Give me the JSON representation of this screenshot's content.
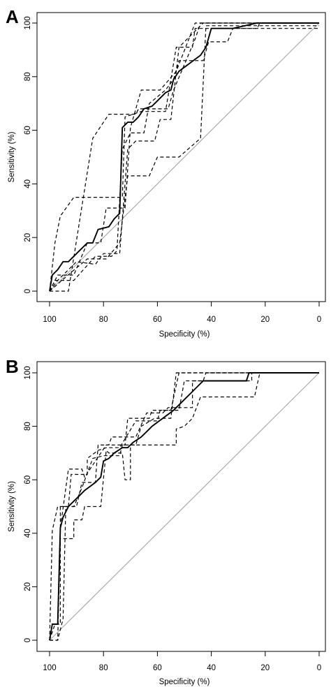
{
  "chart_data": [
    {
      "type": "line",
      "panel_label": "A",
      "xlabel": "Specificity (%)",
      "ylabel": "Sensitivity (%)",
      "xlim": [
        100,
        0
      ],
      "ylim": [
        0,
        100
      ],
      "x_ticks": [
        100,
        80,
        60,
        40,
        20,
        0
      ],
      "y_ticks": [
        0,
        20,
        40,
        60,
        80,
        100
      ],
      "grid": false,
      "reference_line": [
        [
          100,
          0
        ],
        [
          0,
          100
        ]
      ],
      "series": [
        {
          "style": "solid",
          "points": [
            [
              100,
              0
            ],
            [
              99,
              6
            ],
            [
              97,
              8
            ],
            [
              95,
              11
            ],
            [
              93,
              11
            ],
            [
              91,
              13
            ],
            [
              88,
              16
            ],
            [
              86,
              18
            ],
            [
              84,
              18
            ],
            [
              82,
              23
            ],
            [
              78,
              24
            ],
            [
              76,
              27
            ],
            [
              74,
              29
            ],
            [
              73,
              61
            ],
            [
              71,
              63
            ],
            [
              69,
              63
            ],
            [
              67,
              65
            ],
            [
              65,
              68
            ],
            [
              62,
              69
            ],
            [
              60,
              71
            ],
            [
              57,
              74
            ],
            [
              55,
              75
            ],
            [
              54,
              79
            ],
            [
              52,
              82
            ],
            [
              48,
              85
            ],
            [
              44,
              88
            ],
            [
              42,
              91
            ],
            [
              40,
              98
            ],
            [
              32,
              98
            ],
            [
              23,
              100
            ],
            [
              0,
              100
            ]
          ]
        },
        {
          "style": "dashed",
          "points": [
            [
              100,
              0
            ],
            [
              98,
              18
            ],
            [
              96,
              28
            ],
            [
              91,
              35
            ],
            [
              78,
              35
            ],
            [
              73,
              35
            ],
            [
              72,
              65
            ],
            [
              66,
              67
            ],
            [
              57,
              67
            ],
            [
              53,
              91
            ],
            [
              47,
              91
            ],
            [
              46,
              98
            ],
            [
              23,
              98
            ],
            [
              22,
              100
            ],
            [
              0,
              100
            ]
          ]
        },
        {
          "style": "dashed",
          "points": [
            [
              100,
              0
            ],
            [
              93,
              0
            ],
            [
              84,
              57
            ],
            [
              78,
              66
            ],
            [
              68,
              66
            ],
            [
              67,
              68
            ],
            [
              56,
              68
            ],
            [
              54,
              75
            ],
            [
              46,
              94
            ],
            [
              44,
              100
            ],
            [
              0,
              100
            ]
          ]
        },
        {
          "style": "dashed",
          "points": [
            [
              100,
              0
            ],
            [
              97,
              6
            ],
            [
              91,
              6
            ],
            [
              86,
              18
            ],
            [
              81,
              18
            ],
            [
              79,
              31
            ],
            [
              72,
              31
            ],
            [
              70,
              61
            ],
            [
              66,
              75
            ],
            [
              59,
              75
            ],
            [
              53,
              82
            ],
            [
              46,
              100
            ],
            [
              0,
              100
            ]
          ]
        },
        {
          "style": "dashed",
          "points": [
            [
              100,
              0
            ],
            [
              97,
              4
            ],
            [
              90,
              11
            ],
            [
              83,
              10
            ],
            [
              80,
              14
            ],
            [
              74,
              14
            ],
            [
              73,
              27
            ],
            [
              71,
              53
            ],
            [
              68,
              56
            ],
            [
              61,
              56
            ],
            [
              59,
              64
            ],
            [
              55,
              64
            ],
            [
              52,
              91
            ],
            [
              43,
              100
            ],
            [
              0,
              100
            ]
          ]
        },
        {
          "style": "dashed",
          "points": [
            [
              100,
              0
            ],
            [
              98,
              4
            ],
            [
              91,
              4
            ],
            [
              83,
              13
            ],
            [
              77,
              13
            ],
            [
              75,
              15
            ],
            [
              73,
              53
            ],
            [
              70,
              59
            ],
            [
              65,
              59
            ],
            [
              63,
              70
            ],
            [
              57,
              75
            ],
            [
              54,
              79
            ],
            [
              52,
              86
            ],
            [
              43,
              86
            ],
            [
              41,
              93
            ],
            [
              34,
              93
            ],
            [
              32,
              98
            ],
            [
              0,
              98
            ]
          ]
        },
        {
          "style": "dashed",
          "points": [
            [
              100,
              0
            ],
            [
              92,
              7
            ],
            [
              86,
              12
            ],
            [
              79,
              12
            ],
            [
              74,
              18
            ],
            [
              71,
              43
            ],
            [
              63,
              43
            ],
            [
              60,
              50
            ],
            [
              52,
              50
            ],
            [
              44,
              57
            ],
            [
              42,
              99
            ],
            [
              0,
              99
            ]
          ]
        }
      ]
    },
    {
      "type": "line",
      "panel_label": "B",
      "xlabel": "Specificity (%)",
      "ylabel": "Sensitivity (%)",
      "xlim": [
        100,
        0
      ],
      "ylim": [
        0,
        100
      ],
      "x_ticks": [
        100,
        80,
        60,
        40,
        20,
        0
      ],
      "y_ticks": [
        0,
        20,
        40,
        60,
        80,
        100
      ],
      "grid": false,
      "reference_line": [
        [
          100,
          0
        ],
        [
          0,
          100
        ]
      ],
      "series": [
        {
          "style": "solid",
          "points": [
            [
              100,
              0
            ],
            [
              99,
              6
            ],
            [
              97,
              6
            ],
            [
              96,
              42
            ],
            [
              95,
              46
            ],
            [
              93,
              50
            ],
            [
              91,
              52
            ],
            [
              89,
              54
            ],
            [
              87,
              56
            ],
            [
              83,
              59
            ],
            [
              81,
              61
            ],
            [
              80,
              67
            ],
            [
              78,
              68
            ],
            [
              76,
              70
            ],
            [
              73,
              72
            ],
            [
              71,
              72
            ],
            [
              69,
              74
            ],
            [
              66,
              76
            ],
            [
              64,
              78
            ],
            [
              62,
              80
            ],
            [
              58,
              83
            ],
            [
              54,
              86
            ],
            [
              50,
              90
            ],
            [
              46,
              94
            ],
            [
              43,
              97
            ],
            [
              27,
              97
            ],
            [
              26,
              100
            ],
            [
              0,
              100
            ]
          ]
        },
        {
          "style": "dashed",
          "points": [
            [
              100,
              0
            ],
            [
              98,
              6
            ],
            [
              96,
              6
            ],
            [
              96,
              50
            ],
            [
              93,
              50
            ],
            [
              92,
              62
            ],
            [
              86,
              62
            ],
            [
              86,
              68
            ],
            [
              82,
              71
            ],
            [
              79,
              72
            ],
            [
              74,
              72
            ],
            [
              68,
              82
            ],
            [
              60,
              82
            ],
            [
              59,
              86
            ],
            [
              52,
              86
            ],
            [
              50,
              97
            ],
            [
              43,
              97
            ],
            [
              42,
              100
            ],
            [
              0,
              100
            ]
          ]
        },
        {
          "style": "dashed",
          "points": [
            [
              100,
              0
            ],
            [
              99,
              41
            ],
            [
              97,
              50
            ],
            [
              91,
              50
            ],
            [
              88,
              57
            ],
            [
              84,
              68
            ],
            [
              80,
              69
            ],
            [
              74,
              69
            ],
            [
              73,
              73
            ],
            [
              68,
              73
            ],
            [
              66,
              80
            ],
            [
              61,
              83
            ],
            [
              55,
              83
            ],
            [
              53,
              100
            ],
            [
              0,
              100
            ]
          ]
        },
        {
          "style": "dashed",
          "points": [
            [
              100,
              0
            ],
            [
              99,
              6
            ],
            [
              97,
              6
            ],
            [
              96,
              42
            ],
            [
              93,
              64
            ],
            [
              88,
              64
            ],
            [
              87,
              61
            ],
            [
              79,
              73
            ],
            [
              72,
              73
            ],
            [
              71,
              83
            ],
            [
              63,
              83
            ],
            [
              62,
              86
            ],
            [
              55,
              86
            ],
            [
              52,
              100
            ],
            [
              0,
              100
            ]
          ]
        },
        {
          "style": "dashed",
          "points": [
            [
              100,
              0
            ],
            [
              97,
              0
            ],
            [
              95,
              8
            ],
            [
              94,
              50
            ],
            [
              90,
              50
            ],
            [
              88,
              59
            ],
            [
              83,
              59
            ],
            [
              82,
              73
            ],
            [
              78,
              73
            ],
            [
              77,
              76
            ],
            [
              68,
              76
            ],
            [
              64,
              85
            ],
            [
              58,
              85
            ],
            [
              56,
              87
            ],
            [
              47,
              87
            ],
            [
              47,
              97
            ],
            [
              25,
              97
            ],
            [
              25,
              100
            ],
            [
              0,
              100
            ]
          ]
        },
        {
          "style": "dashed",
          "points": [
            [
              100,
              0
            ],
            [
              97,
              0
            ],
            [
              96,
              38
            ],
            [
              91,
              38
            ],
            [
              91,
              45
            ],
            [
              88,
              45
            ],
            [
              87,
              50
            ],
            [
              81,
              50
            ],
            [
              79,
              71
            ],
            [
              78,
              70
            ],
            [
              73,
              70
            ],
            [
              72,
              60
            ],
            [
              70,
              60
            ],
            [
              70,
              73
            ],
            [
              65,
              73
            ],
            [
              62,
              73
            ],
            [
              53,
              73
            ],
            [
              53,
              79
            ],
            [
              50,
              80
            ],
            [
              47,
              83
            ],
            [
              44,
              91
            ],
            [
              24,
              91
            ],
            [
              22,
              100
            ],
            [
              0,
              100
            ]
          ]
        }
      ]
    }
  ]
}
